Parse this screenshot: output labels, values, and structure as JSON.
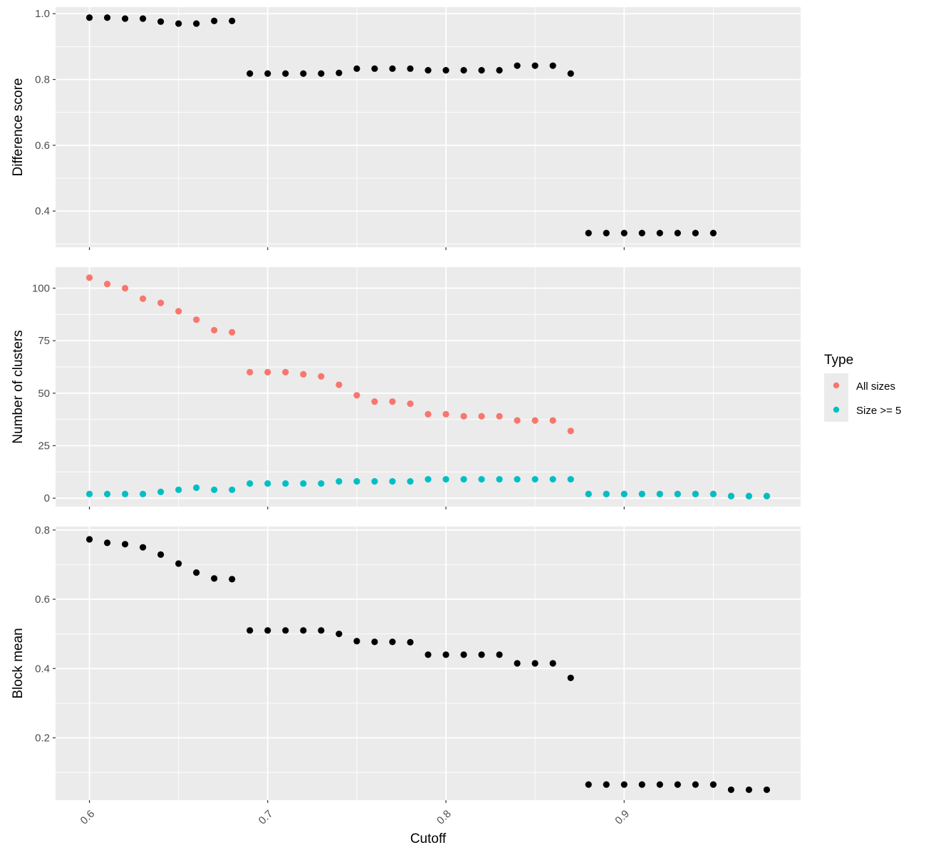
{
  "colors": {
    "panel_bg": "#ebebeb",
    "grid": "#ffffff",
    "black_points": "#000000",
    "all_sizes": "#f8766d",
    "size_ge_5": "#00bfc4",
    "tick_text": "#4d4d4d",
    "tick_mark": "#333333"
  },
  "chart_data": [
    {
      "type": "scatter",
      "title": "",
      "xlabel": "",
      "ylabel": "Difference score",
      "xlim": [
        0.581,
        0.999
      ],
      "ylim": [
        0.29,
        1.02
      ],
      "yticks": [
        0.4,
        0.6,
        0.8,
        1.0
      ],
      "ytick_labels": [
        "0.4",
        "0.6",
        "0.8",
        "1.0"
      ],
      "grid": true,
      "series": [
        {
          "color": "#000000",
          "x": [
            0.6,
            0.61,
            0.62,
            0.63,
            0.64,
            0.65,
            0.66,
            0.67,
            0.68,
            0.69,
            0.7,
            0.71,
            0.72,
            0.73,
            0.74,
            0.75,
            0.76,
            0.77,
            0.78,
            0.79,
            0.8,
            0.81,
            0.82,
            0.83,
            0.84,
            0.85,
            0.86,
            0.87,
            0.88,
            0.89,
            0.9,
            0.91,
            0.92,
            0.93,
            0.94,
            0.95
          ],
          "y": [
            0.988,
            0.988,
            0.985,
            0.985,
            0.976,
            0.97,
            0.97,
            0.978,
            0.978,
            0.818,
            0.818,
            0.818,
            0.818,
            0.818,
            0.82,
            0.833,
            0.833,
            0.833,
            0.833,
            0.828,
            0.828,
            0.828,
            0.828,
            0.828,
            0.842,
            0.842,
            0.842,
            0.818,
            0.333,
            0.333,
            0.333,
            0.333,
            0.333,
            0.333,
            0.333,
            0.333
          ]
        }
      ]
    },
    {
      "type": "scatter",
      "title": "",
      "xlabel": "",
      "ylabel": "Number of clusters",
      "xlim": [
        0.581,
        0.999
      ],
      "ylim": [
        -4,
        110
      ],
      "yticks": [
        0,
        25,
        50,
        75,
        100
      ],
      "ytick_labels": [
        "0",
        "25",
        "50",
        "75",
        "100"
      ],
      "grid": true,
      "legend": {
        "title": "Type",
        "placement": "right",
        "entries": [
          {
            "label": "All sizes",
            "color": "#f8766d"
          },
          {
            "label": "Size >= 5",
            "color": "#00bfc4"
          }
        ]
      },
      "series": [
        {
          "name": "All sizes",
          "color": "#f8766d",
          "x": [
            0.6,
            0.61,
            0.62,
            0.63,
            0.64,
            0.65,
            0.66,
            0.67,
            0.68,
            0.69,
            0.7,
            0.71,
            0.72,
            0.73,
            0.74,
            0.75,
            0.76,
            0.77,
            0.78,
            0.79,
            0.8,
            0.81,
            0.82,
            0.83,
            0.84,
            0.85,
            0.86,
            0.87,
            0.88,
            0.89,
            0.9,
            0.91,
            0.92,
            0.93,
            0.94,
            0.95,
            0.96,
            0.97,
            0.98
          ],
          "y": [
            105,
            102,
            100,
            95,
            93,
            89,
            85,
            80,
            79,
            60,
            60,
            60,
            59,
            58,
            54,
            49,
            46,
            46,
            45,
            40,
            40,
            39,
            39,
            39,
            37,
            37,
            37,
            32,
            2,
            2,
            2,
            2,
            2,
            2,
            2,
            2,
            1,
            1,
            1
          ]
        },
        {
          "name": "Size >= 5",
          "color": "#00bfc4",
          "x": [
            0.6,
            0.61,
            0.62,
            0.63,
            0.64,
            0.65,
            0.66,
            0.67,
            0.68,
            0.69,
            0.7,
            0.71,
            0.72,
            0.73,
            0.74,
            0.75,
            0.76,
            0.77,
            0.78,
            0.79,
            0.8,
            0.81,
            0.82,
            0.83,
            0.84,
            0.85,
            0.86,
            0.87,
            0.88,
            0.89,
            0.9,
            0.91,
            0.92,
            0.93,
            0.94,
            0.95,
            0.96,
            0.97,
            0.98
          ],
          "y": [
            2,
            2,
            2,
            2,
            3,
            4,
            5,
            4,
            4,
            7,
            7,
            7,
            7,
            7,
            8,
            8,
            8,
            8,
            8,
            9,
            9,
            9,
            9,
            9,
            9,
            9,
            9,
            9,
            2,
            2,
            2,
            2,
            2,
            2,
            2,
            2,
            1,
            1,
            1
          ]
        }
      ]
    },
    {
      "type": "scatter",
      "title": "",
      "xlabel": "Cutoff",
      "ylabel": "Block mean",
      "xlim": [
        0.581,
        0.999
      ],
      "ylim": [
        0.02,
        0.81
      ],
      "xticks": [
        0.6,
        0.7,
        0.8,
        0.9
      ],
      "xtick_labels": [
        "0.6",
        "0.7",
        "0.8",
        "0.9"
      ],
      "yticks": [
        0.2,
        0.4,
        0.6,
        0.8
      ],
      "ytick_labels": [
        "0.2",
        "0.4",
        "0.6",
        "0.8"
      ],
      "grid": true,
      "series": [
        {
          "color": "#000000",
          "x": [
            0.6,
            0.61,
            0.62,
            0.63,
            0.64,
            0.65,
            0.66,
            0.67,
            0.68,
            0.69,
            0.7,
            0.71,
            0.72,
            0.73,
            0.74,
            0.75,
            0.76,
            0.77,
            0.78,
            0.79,
            0.8,
            0.81,
            0.82,
            0.83,
            0.84,
            0.85,
            0.86,
            0.87,
            0.88,
            0.89,
            0.9,
            0.91,
            0.92,
            0.93,
            0.94,
            0.95,
            0.96,
            0.97,
            0.98
          ],
          "y": [
            0.773,
            0.763,
            0.759,
            0.75,
            0.729,
            0.703,
            0.677,
            0.66,
            0.658,
            0.51,
            0.51,
            0.51,
            0.51,
            0.51,
            0.5,
            0.479,
            0.477,
            0.477,
            0.476,
            0.44,
            0.44,
            0.44,
            0.44,
            0.44,
            0.415,
            0.415,
            0.415,
            0.373,
            0.065,
            0.065,
            0.065,
            0.065,
            0.065,
            0.065,
            0.065,
            0.065,
            0.05,
            0.05,
            0.05
          ]
        }
      ]
    }
  ]
}
